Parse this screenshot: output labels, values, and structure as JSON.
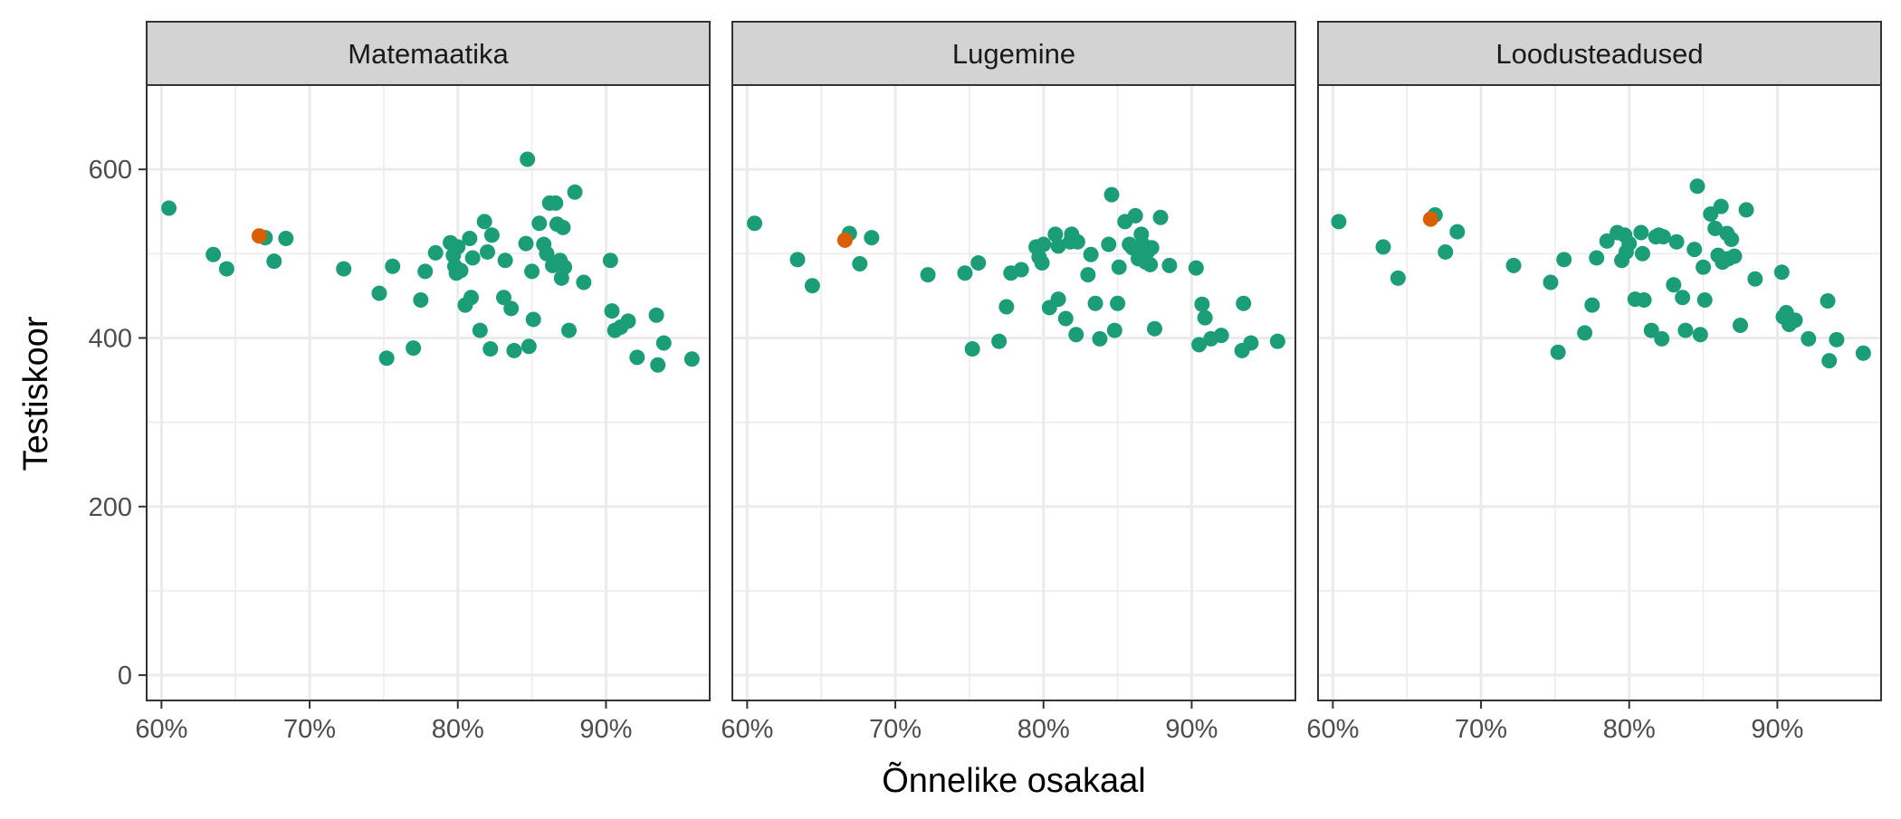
{
  "chart_data": {
    "type": "scatter",
    "xlabel": "Õnnelike osakaal",
    "ylabel": "Testiskoor",
    "xlim": [
      0.59,
      0.97
    ],
    "ylim": [
      -30,
      700
    ],
    "x_ticks": [
      0.6,
      0.7,
      0.8,
      0.9
    ],
    "x_tick_labels": [
      "60%",
      "70%",
      "80%",
      "90%"
    ],
    "y_ticks": [
      0,
      200,
      400,
      600
    ],
    "y_tick_labels": [
      "0",
      "200",
      "400",
      "600"
    ],
    "grid": true,
    "legend": "none",
    "colors": {
      "main": "#1B9E77",
      "highlight": "#D95F02",
      "strip": "#D3D3D3",
      "grid": "#EBEBEB"
    },
    "panels": [
      {
        "title": "Matemaatika",
        "highlight": [
          [
            0.666,
            521
          ]
        ],
        "points": [
          [
            0.605,
            554
          ],
          [
            0.635,
            499
          ],
          [
            0.644,
            482
          ],
          [
            0.67,
            519
          ],
          [
            0.676,
            491
          ],
          [
            0.684,
            518
          ],
          [
            0.723,
            482
          ],
          [
            0.747,
            453
          ],
          [
            0.752,
            376
          ],
          [
            0.756,
            485
          ],
          [
            0.77,
            388
          ],
          [
            0.775,
            445
          ],
          [
            0.778,
            479
          ],
          [
            0.785,
            501
          ],
          [
            0.795,
            513
          ],
          [
            0.797,
            498
          ],
          [
            0.798,
            485
          ],
          [
            0.799,
            477
          ],
          [
            0.8,
            508
          ],
          [
            0.802,
            480
          ],
          [
            0.805,
            439
          ],
          [
            0.808,
            518
          ],
          [
            0.809,
            448
          ],
          [
            0.81,
            495
          ],
          [
            0.815,
            409
          ],
          [
            0.818,
            538
          ],
          [
            0.82,
            502
          ],
          [
            0.822,
            387
          ],
          [
            0.823,
            522
          ],
          [
            0.831,
            448
          ],
          [
            0.832,
            492
          ],
          [
            0.836,
            435
          ],
          [
            0.838,
            385
          ],
          [
            0.846,
            512
          ],
          [
            0.847,
            612
          ],
          [
            0.848,
            390
          ],
          [
            0.85,
            479
          ],
          [
            0.851,
            422
          ],
          [
            0.855,
            536
          ],
          [
            0.858,
            511
          ],
          [
            0.86,
            500
          ],
          [
            0.862,
            560
          ],
          [
            0.864,
            486
          ],
          [
            0.866,
            560
          ],
          [
            0.867,
            535
          ],
          [
            0.869,
            492
          ],
          [
            0.87,
            471
          ],
          [
            0.871,
            531
          ],
          [
            0.872,
            484
          ],
          [
            0.875,
            409
          ],
          [
            0.879,
            573
          ],
          [
            0.885,
            466
          ],
          [
            0.903,
            492
          ],
          [
            0.904,
            432
          ],
          [
            0.906,
            409
          ],
          [
            0.91,
            413
          ],
          [
            0.915,
            420
          ],
          [
            0.921,
            377
          ],
          [
            0.934,
            427
          ],
          [
            0.935,
            368
          ],
          [
            0.939,
            394
          ],
          [
            0.958,
            375
          ]
        ]
      },
      {
        "title": "Lugemine",
        "highlight": [
          [
            0.666,
            516
          ]
        ],
        "points": [
          [
            0.605,
            536
          ],
          [
            0.634,
            493
          ],
          [
            0.644,
            462
          ],
          [
            0.669,
            524
          ],
          [
            0.676,
            488
          ],
          [
            0.684,
            519
          ],
          [
            0.722,
            475
          ],
          [
            0.747,
            477
          ],
          [
            0.752,
            387
          ],
          [
            0.756,
            489
          ],
          [
            0.77,
            396
          ],
          [
            0.775,
            437
          ],
          [
            0.778,
            477
          ],
          [
            0.785,
            481
          ],
          [
            0.795,
            508
          ],
          [
            0.797,
            496
          ],
          [
            0.799,
            489
          ],
          [
            0.8,
            511
          ],
          [
            0.804,
            436
          ],
          [
            0.808,
            523
          ],
          [
            0.81,
            509
          ],
          [
            0.81,
            446
          ],
          [
            0.815,
            423
          ],
          [
            0.818,
            514
          ],
          [
            0.819,
            523
          ],
          [
            0.822,
            404
          ],
          [
            0.823,
            514
          ],
          [
            0.83,
            475
          ],
          [
            0.832,
            499
          ],
          [
            0.835,
            441
          ],
          [
            0.838,
            399
          ],
          [
            0.844,
            511
          ],
          [
            0.846,
            570
          ],
          [
            0.848,
            409
          ],
          [
            0.85,
            441
          ],
          [
            0.851,
            484
          ],
          [
            0.855,
            538
          ],
          [
            0.858,
            511
          ],
          [
            0.86,
            507
          ],
          [
            0.862,
            545
          ],
          [
            0.864,
            494
          ],
          [
            0.866,
            523
          ],
          [
            0.867,
            511
          ],
          [
            0.869,
            490
          ],
          [
            0.87,
            502
          ],
          [
            0.872,
            487
          ],
          [
            0.873,
            507
          ],
          [
            0.875,
            411
          ],
          [
            0.879,
            543
          ],
          [
            0.885,
            486
          ],
          [
            0.903,
            483
          ],
          [
            0.905,
            392
          ],
          [
            0.907,
            440
          ],
          [
            0.909,
            424
          ],
          [
            0.913,
            399
          ],
          [
            0.92,
            403
          ],
          [
            0.934,
            385
          ],
          [
            0.935,
            441
          ],
          [
            0.94,
            394
          ],
          [
            0.958,
            396
          ]
        ]
      },
      {
        "title": "Loodusteadused",
        "highlight": [
          [
            0.666,
            541
          ]
        ],
        "points": [
          [
            0.604,
            538
          ],
          [
            0.634,
            508
          ],
          [
            0.644,
            471
          ],
          [
            0.669,
            546
          ],
          [
            0.676,
            502
          ],
          [
            0.684,
            526
          ],
          [
            0.722,
            486
          ],
          [
            0.747,
            466
          ],
          [
            0.752,
            383
          ],
          [
            0.756,
            493
          ],
          [
            0.77,
            406
          ],
          [
            0.775,
            439
          ],
          [
            0.778,
            495
          ],
          [
            0.785,
            515
          ],
          [
            0.792,
            525
          ],
          [
            0.795,
            492
          ],
          [
            0.797,
            522
          ],
          [
            0.798,
            502
          ],
          [
            0.8,
            512
          ],
          [
            0.804,
            446
          ],
          [
            0.808,
            525
          ],
          [
            0.809,
            500
          ],
          [
            0.81,
            445
          ],
          [
            0.815,
            409
          ],
          [
            0.818,
            520
          ],
          [
            0.82,
            522
          ],
          [
            0.822,
            399
          ],
          [
            0.823,
            520
          ],
          [
            0.83,
            463
          ],
          [
            0.832,
            514
          ],
          [
            0.836,
            448
          ],
          [
            0.838,
            409
          ],
          [
            0.844,
            505
          ],
          [
            0.846,
            580
          ],
          [
            0.848,
            404
          ],
          [
            0.85,
            484
          ],
          [
            0.851,
            445
          ],
          [
            0.855,
            547
          ],
          [
            0.858,
            530
          ],
          [
            0.86,
            498
          ],
          [
            0.862,
            556
          ],
          [
            0.863,
            490
          ],
          [
            0.866,
            524
          ],
          [
            0.867,
            494
          ],
          [
            0.869,
            517
          ],
          [
            0.871,
            497
          ],
          [
            0.875,
            415
          ],
          [
            0.879,
            552
          ],
          [
            0.885,
            470
          ],
          [
            0.903,
            478
          ],
          [
            0.904,
            425
          ],
          [
            0.906,
            430
          ],
          [
            0.908,
            416
          ],
          [
            0.912,
            421
          ],
          [
            0.921,
            399
          ],
          [
            0.934,
            444
          ],
          [
            0.935,
            373
          ],
          [
            0.94,
            398
          ],
          [
            0.958,
            382
          ]
        ]
      }
    ]
  }
}
